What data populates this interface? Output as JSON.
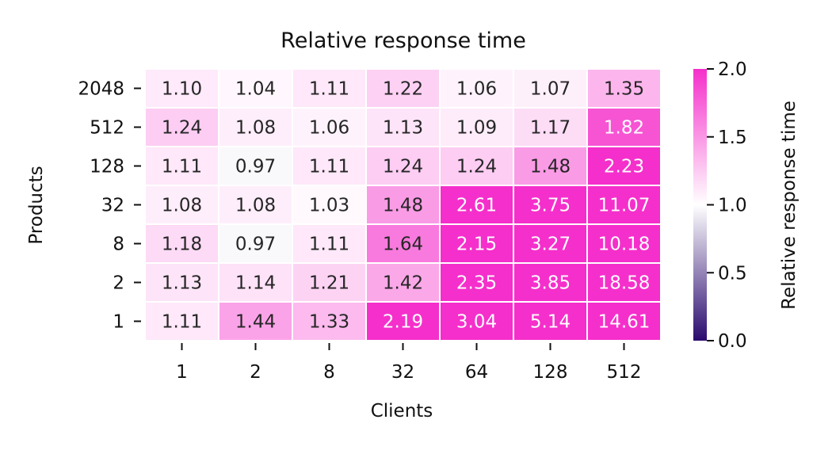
{
  "chart_data": {
    "type": "heatmap",
    "title": "Relative response time",
    "xlabel": "Clients",
    "ylabel": "Products",
    "x_categories": [
      "1",
      "2",
      "8",
      "32",
      "64",
      "128",
      "512"
    ],
    "y_categories": [
      "2048",
      "512",
      "128",
      "32",
      "8",
      "2",
      "1"
    ],
    "values": [
      [
        1.1,
        1.04,
        1.11,
        1.22,
        1.06,
        1.07,
        1.35
      ],
      [
        1.24,
        1.08,
        1.06,
        1.13,
        1.09,
        1.17,
        1.82
      ],
      [
        1.11,
        0.97,
        1.11,
        1.24,
        1.24,
        1.48,
        2.23
      ],
      [
        1.08,
        1.08,
        1.03,
        1.48,
        2.61,
        3.75,
        11.07
      ],
      [
        1.18,
        0.97,
        1.11,
        1.64,
        2.15,
        3.27,
        10.18
      ],
      [
        1.13,
        1.14,
        1.21,
        1.42,
        2.35,
        3.85,
        18.58
      ],
      [
        1.11,
        1.44,
        1.33,
        2.19,
        3.04,
        5.14,
        14.61
      ]
    ],
    "labels": [
      [
        "1.10",
        "1.04",
        "1.11",
        "1.22",
        "1.06",
        "1.07",
        "1.35"
      ],
      [
        "1.24",
        "1.08",
        "1.06",
        "1.13",
        "1.09",
        "1.17",
        "1.82"
      ],
      [
        "1.11",
        "0.97",
        "1.11",
        "1.24",
        "1.24",
        "1.48",
        "2.23"
      ],
      [
        "1.08",
        "1.08",
        "1.03",
        "1.48",
        "2.61",
        "3.75",
        "11.07"
      ],
      [
        "1.18",
        "0.97",
        "1.11",
        "1.64",
        "2.15",
        "3.27",
        "10.18"
      ],
      [
        "1.13",
        "1.14",
        "1.21",
        "1.42",
        "2.35",
        "3.85",
        "18.58"
      ],
      [
        "1.11",
        "1.44",
        "1.33",
        "2.19",
        "3.04",
        "5.14",
        "14.61"
      ]
    ],
    "colorbar": {
      "label": "Relative response time",
      "range": [
        0.0,
        2.0
      ],
      "ticks": [
        "0.0",
        "0.5",
        "1.0",
        "1.5",
        "2.0"
      ],
      "colors": {
        "low": "#2a0a6e",
        "mid": "#ffffff",
        "high": "#f52fcb"
      }
    },
    "grid": false
  }
}
